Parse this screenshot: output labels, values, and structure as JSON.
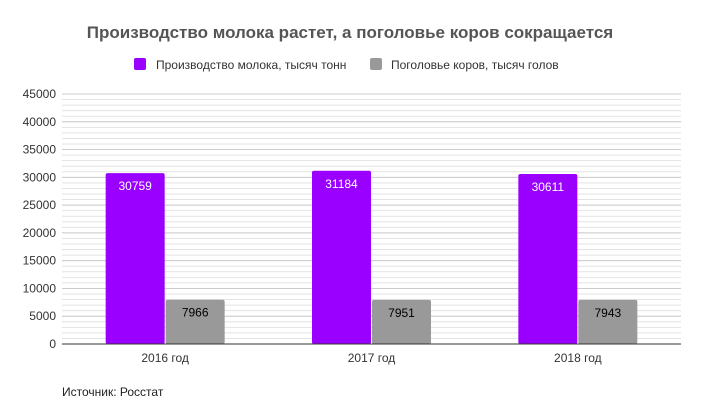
{
  "chart_data": {
    "type": "bar",
    "title": "Производство молока растет, а поголовье коров сокращается",
    "categories": [
      "2016 год",
      "2017 год",
      "2018 год"
    ],
    "series": [
      {
        "name": "Производство молока, тысяч тонн",
        "color": "#9900ff",
        "label_color": "#ffffff",
        "values": [
          30759,
          31184,
          30611
        ]
      },
      {
        "name": "Поголовье коров, тысяч голов",
        "color": "#999999",
        "label_color": "#000000",
        "values": [
          7966,
          7951,
          7943
        ]
      }
    ],
    "ylim": [
      0,
      45000
    ],
    "y_ticks": [
      0,
      5000,
      10000,
      15000,
      20000,
      25000,
      30000,
      35000,
      40000,
      45000
    ],
    "y_tick_labels": [
      "0",
      "5000",
      "10000",
      "15000",
      "20000",
      "25000",
      "30000",
      "35000",
      "40000",
      "45000"
    ],
    "minor_grid_step": 1000,
    "grid": true,
    "legend_position": "top-center",
    "xlabel": "",
    "ylabel": ""
  },
  "source": "Источник: Росстат"
}
